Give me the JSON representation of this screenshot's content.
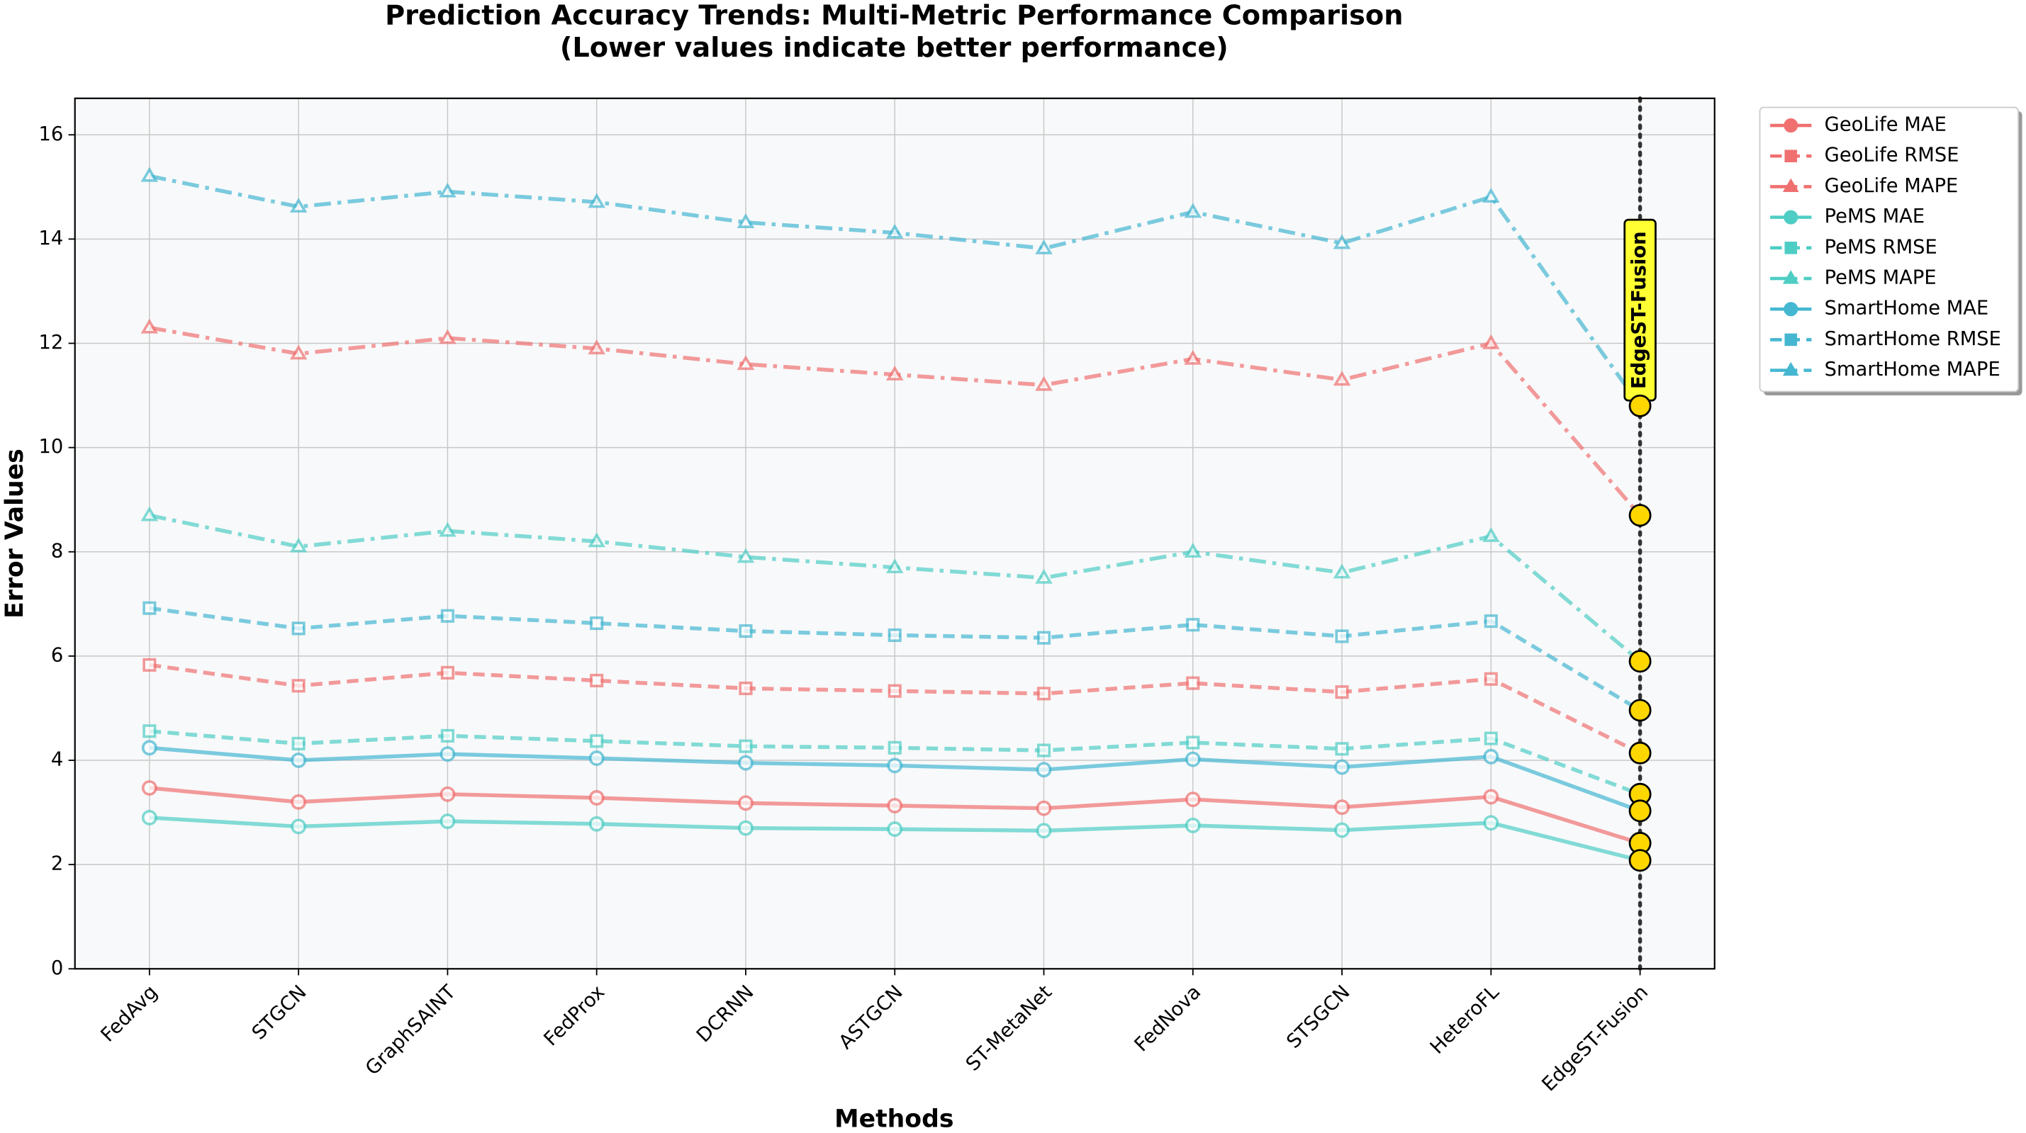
{
  "chart_data": {
    "type": "line",
    "title": "Prediction Accuracy Trends: Multi-Metric Performance Comparison",
    "subtitle": "(Lower values indicate better performance)",
    "x_label": "Methods",
    "y_label": "Error Values",
    "categories": [
      "FedAvg",
      "STGCN",
      "GraphSAINT",
      "FedProx",
      "DCRNN",
      "ASTGCN",
      "ST-MetaNet",
      "FedNova",
      "STSGCN",
      "HeteroFL",
      "EdgeST-Fusion"
    ],
    "ylim": [
      0,
      16.7
    ],
    "yticks": [
      0,
      2,
      4,
      6,
      8,
      10,
      12,
      14,
      16
    ],
    "grid": true,
    "legend": "outside-right",
    "highlight": {
      "category_index": 10,
      "label": "EdgeST-Fusion",
      "color": "#ffd700",
      "label_color": "#ffff33"
    },
    "series": [
      {
        "name": "GeoLife MAE",
        "color": "#f07070",
        "linestyle": "solid",
        "marker": "circle",
        "values": [
          3.47,
          3.2,
          3.35,
          3.28,
          3.18,
          3.13,
          3.08,
          3.25,
          3.1,
          3.3,
          2.41
        ]
      },
      {
        "name": "GeoLife RMSE",
        "color": "#f07070",
        "linestyle": "dashed",
        "marker": "square",
        "values": [
          5.83,
          5.43,
          5.68,
          5.53,
          5.38,
          5.33,
          5.28,
          5.48,
          5.31,
          5.56,
          4.14
        ]
      },
      {
        "name": "GeoLife MAPE",
        "color": "#f07070",
        "linestyle": "dashdot",
        "marker": "triangle",
        "values": [
          12.3,
          11.8,
          12.1,
          11.9,
          11.6,
          11.4,
          11.2,
          11.7,
          11.3,
          12.0,
          8.7
        ]
      },
      {
        "name": "PeMS MAE",
        "color": "#4ecdc4",
        "linestyle": "solid",
        "marker": "circle",
        "values": [
          2.9,
          2.73,
          2.83,
          2.78,
          2.7,
          2.68,
          2.65,
          2.75,
          2.66,
          2.8,
          2.08
        ]
      },
      {
        "name": "PeMS RMSE",
        "color": "#4ecdc4",
        "linestyle": "dashed",
        "marker": "square",
        "values": [
          4.56,
          4.32,
          4.47,
          4.37,
          4.27,
          4.24,
          4.19,
          4.34,
          4.22,
          4.42,
          3.35
        ]
      },
      {
        "name": "PeMS MAPE",
        "color": "#4ecdc4",
        "linestyle": "dashdot",
        "marker": "triangle",
        "values": [
          8.7,
          8.1,
          8.4,
          8.2,
          7.9,
          7.7,
          7.5,
          8.0,
          7.6,
          8.3,
          5.9
        ]
      },
      {
        "name": "SmartHome MAE",
        "color": "#45b7d1",
        "linestyle": "solid",
        "marker": "circle",
        "values": [
          4.24,
          4.0,
          4.12,
          4.04,
          3.95,
          3.9,
          3.82,
          4.02,
          3.87,
          4.07,
          3.03
        ]
      },
      {
        "name": "SmartHome RMSE",
        "color": "#45b7d1",
        "linestyle": "dashed",
        "marker": "square",
        "values": [
          6.92,
          6.53,
          6.77,
          6.63,
          6.48,
          6.4,
          6.35,
          6.6,
          6.38,
          6.67,
          4.96
        ]
      },
      {
        "name": "SmartHome MAPE",
        "color": "#45b7d1",
        "linestyle": "dashdot",
        "marker": "triangle",
        "values": [
          15.21,
          14.62,
          14.91,
          14.71,
          14.32,
          14.12,
          13.82,
          14.52,
          13.92,
          14.81,
          10.8
        ]
      }
    ]
  }
}
